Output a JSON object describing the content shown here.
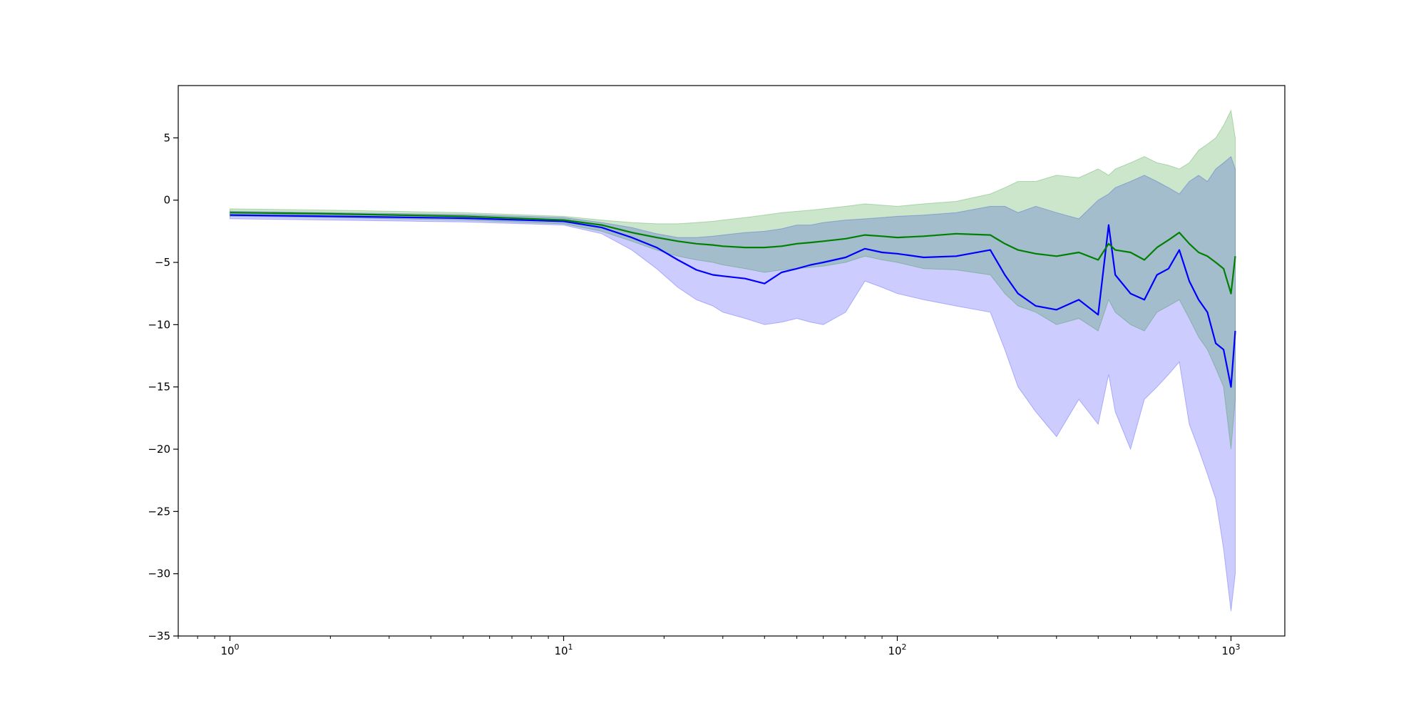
{
  "chart_data": {
    "type": "line",
    "title": "",
    "xlabel": "",
    "ylabel": "",
    "x_scale": "log",
    "xlim": [
      0.7,
      1450
    ],
    "ylim": [
      -35,
      9.2
    ],
    "grid": false,
    "legend": "none",
    "x_ticks": [
      {
        "value": 1,
        "base": "10",
        "exp": "0"
      },
      {
        "value": 10,
        "base": "10",
        "exp": "1"
      },
      {
        "value": 100,
        "base": "10",
        "exp": "2"
      },
      {
        "value": 1000,
        "base": "10",
        "exp": "3"
      }
    ],
    "y_ticks": [
      {
        "value": 5,
        "label": "5"
      },
      {
        "value": 0,
        "label": "0"
      },
      {
        "value": -5,
        "label": "−5"
      },
      {
        "value": -10,
        "label": "−10"
      },
      {
        "value": -15,
        "label": "−15"
      },
      {
        "value": -20,
        "label": "−20"
      },
      {
        "value": -25,
        "label": "−25"
      },
      {
        "value": -30,
        "label": "−30"
      },
      {
        "value": -35,
        "label": "−35"
      }
    ],
    "series": [
      {
        "color": "#0000ff",
        "band_opacity": 0.2,
        "x": [
          1,
          2,
          5,
          10,
          13,
          16,
          19,
          22,
          25,
          28,
          30,
          35,
          40,
          45,
          50,
          55,
          60,
          70,
          80,
          90,
          100,
          120,
          150,
          190,
          210,
          230,
          260,
          300,
          350,
          400,
          430,
          450,
          500,
          550,
          600,
          650,
          700,
          750,
          800,
          850,
          900,
          950,
          1000,
          1030
        ],
        "mean": [
          -1.2,
          -1.3,
          -1.45,
          -1.7,
          -2.2,
          -3.0,
          -3.8,
          -4.8,
          -5.6,
          -6.0,
          -6.1,
          -6.3,
          -6.7,
          -5.8,
          -5.5,
          -5.2,
          -5.0,
          -4.6,
          -3.9,
          -4.2,
          -4.3,
          -4.6,
          -4.5,
          -4.0,
          -6.0,
          -7.5,
          -8.5,
          -8.8,
          -8.0,
          -9.2,
          -2.0,
          -6.0,
          -7.5,
          -8.0,
          -6.0,
          -5.5,
          -4.0,
          -6.5,
          -8.0,
          -9.0,
          -11.5,
          -12.0,
          -15.0,
          -10.5
        ],
        "lower": [
          -1.5,
          -1.6,
          -1.75,
          -2.0,
          -2.7,
          -4.0,
          -5.5,
          -7.0,
          -8.0,
          -8.5,
          -9.0,
          -9.5,
          -10.0,
          -9.8,
          -9.5,
          -9.8,
          -10.0,
          -9.0,
          -6.5,
          -7.0,
          -7.5,
          -8.0,
          -8.5,
          -9.0,
          -12.0,
          -15.0,
          -17.0,
          -19.0,
          -16.0,
          -18.0,
          -14.0,
          -17.0,
          -20.0,
          -16.0,
          -15.0,
          -14.0,
          -13.0,
          -18.0,
          -20.0,
          -22.0,
          -24.0,
          -28.0,
          -33.0,
          -30.0
        ],
        "upper": [
          -0.9,
          -1.0,
          -1.15,
          -1.4,
          -1.8,
          -2.2,
          -2.7,
          -3.0,
          -3.0,
          -2.9,
          -2.8,
          -2.6,
          -2.5,
          -2.3,
          -2.0,
          -2.0,
          -1.8,
          -1.6,
          -1.5,
          -1.4,
          -1.3,
          -1.2,
          -1.0,
          -0.5,
          -0.5,
          -1.0,
          -0.5,
          -1.0,
          -1.5,
          0.0,
          0.5,
          1.0,
          1.5,
          2.0,
          1.5,
          1.0,
          0.5,
          1.5,
          2.0,
          1.5,
          2.5,
          3.0,
          3.5,
          2.5
        ]
      },
      {
        "color": "#008000",
        "band_opacity": 0.2,
        "x": [
          1,
          2,
          5,
          10,
          13,
          16,
          19,
          22,
          25,
          28,
          30,
          35,
          40,
          45,
          50,
          55,
          60,
          70,
          80,
          90,
          100,
          120,
          150,
          190,
          210,
          230,
          260,
          300,
          350,
          400,
          430,
          450,
          500,
          550,
          600,
          650,
          700,
          750,
          800,
          850,
          900,
          950,
          1000,
          1030
        ],
        "mean": [
          -1.0,
          -1.1,
          -1.3,
          -1.6,
          -2.0,
          -2.6,
          -3.0,
          -3.3,
          -3.5,
          -3.6,
          -3.7,
          -3.8,
          -3.8,
          -3.7,
          -3.5,
          -3.4,
          -3.3,
          -3.1,
          -2.8,
          -2.9,
          -3.0,
          -2.9,
          -2.7,
          -2.8,
          -3.5,
          -4.0,
          -4.3,
          -4.5,
          -4.2,
          -4.8,
          -3.5,
          -4.0,
          -4.2,
          -4.8,
          -3.8,
          -3.2,
          -2.6,
          -3.5,
          -4.2,
          -4.5,
          -5.0,
          -5.5,
          -7.5,
          -4.5
        ],
        "lower": [
          -1.3,
          -1.4,
          -1.6,
          -1.9,
          -2.5,
          -3.3,
          -4.0,
          -4.5,
          -4.8,
          -5.0,
          -5.2,
          -5.5,
          -5.8,
          -5.6,
          -5.5,
          -5.4,
          -5.3,
          -5.0,
          -4.5,
          -4.8,
          -5.0,
          -5.5,
          -5.6,
          -6.0,
          -7.5,
          -8.5,
          -9.0,
          -10.0,
          -9.5,
          -10.5,
          -8.0,
          -9.0,
          -10.0,
          -10.5,
          -9.0,
          -8.5,
          -8.0,
          -9.5,
          -11.0,
          -12.0,
          -13.5,
          -15.0,
          -20.0,
          -16.0
        ],
        "upper": [
          -0.7,
          -0.8,
          -1.0,
          -1.3,
          -1.6,
          -1.8,
          -1.9,
          -1.9,
          -1.8,
          -1.7,
          -1.6,
          -1.4,
          -1.2,
          -1.0,
          -0.9,
          -0.8,
          -0.7,
          -0.5,
          -0.3,
          -0.4,
          -0.5,
          -0.3,
          -0.1,
          0.5,
          1.0,
          1.5,
          1.5,
          2.0,
          1.8,
          2.5,
          2.0,
          2.5,
          3.0,
          3.5,
          3.0,
          2.8,
          2.5,
          3.0,
          4.0,
          4.5,
          5.0,
          6.0,
          7.2,
          5.0
        ]
      }
    ]
  }
}
